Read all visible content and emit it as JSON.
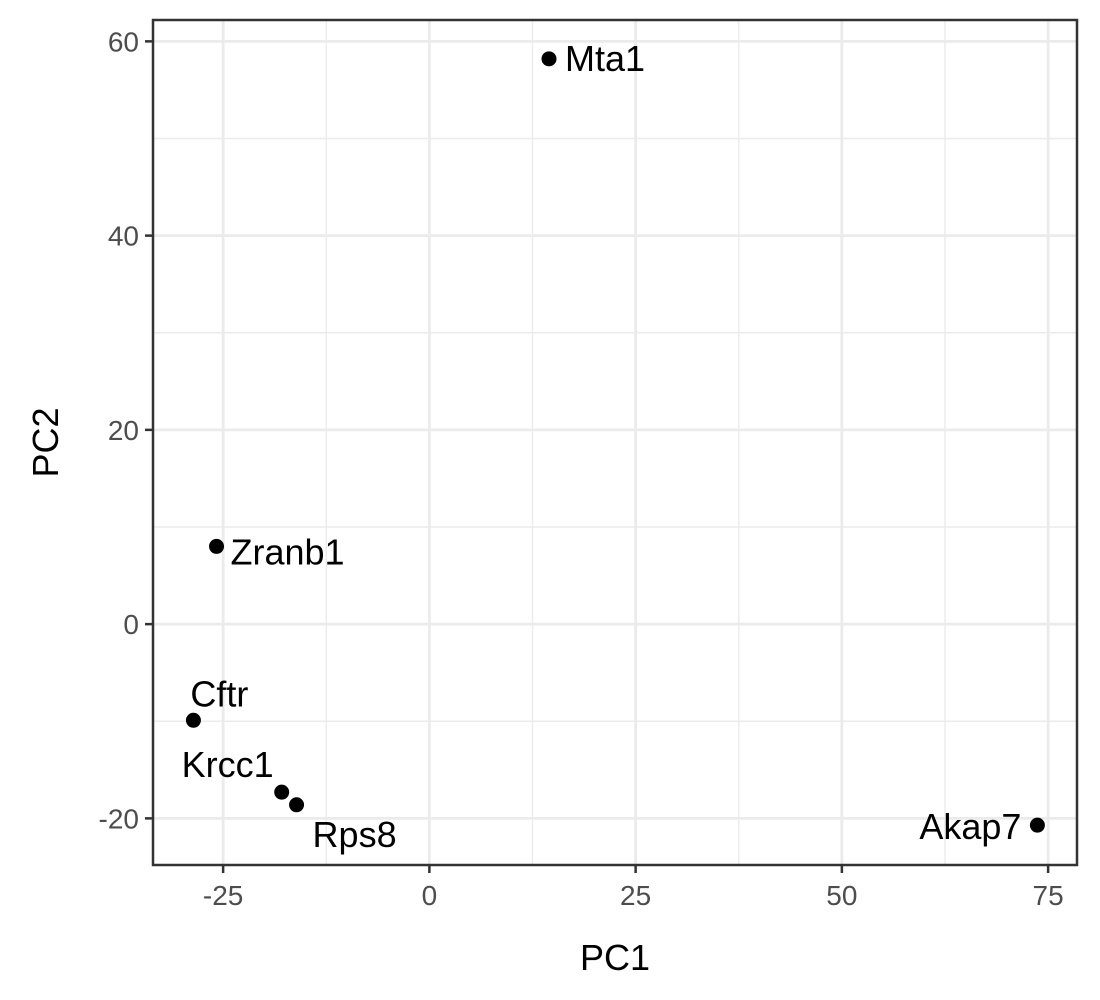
{
  "chart_data": {
    "type": "scatter",
    "xlabel": "PC1",
    "ylabel": "PC2",
    "xlim": [
      -33.5,
      78.5
    ],
    "ylim": [
      -24.8,
      62.2
    ],
    "x_ticks": [
      -25,
      0,
      25,
      50,
      75
    ],
    "y_ticks": [
      -20,
      0,
      20,
      40,
      60
    ],
    "x_tick_labels": [
      "-25",
      "0",
      "25",
      "50",
      "75"
    ],
    "y_tick_labels": [
      "-20",
      "0",
      "20",
      "40",
      "60"
    ],
    "grid": true,
    "point_color": "#000000",
    "points": [
      {
        "label": "Mta1",
        "x": 14.5,
        "y": 58.2
      },
      {
        "label": "Zranb1",
        "x": -25.8,
        "y": 8.0
      },
      {
        "label": "Cftr",
        "x": -28.6,
        "y": -9.9
      },
      {
        "label": "Krcc1",
        "x": -17.9,
        "y": -17.3
      },
      {
        "label": "Rps8",
        "x": -16.1,
        "y": -18.6
      },
      {
        "label": "Akap7",
        "x": 73.7,
        "y": -20.7
      }
    ]
  }
}
